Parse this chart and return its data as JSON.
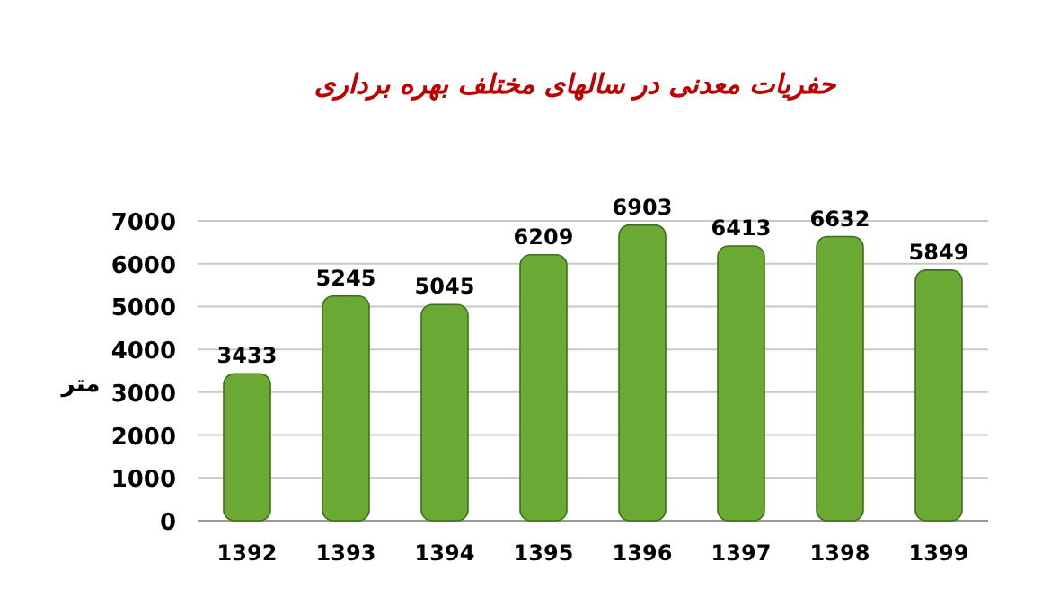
{
  "chart_data": {
    "type": "bar",
    "title": "حفریات معدنی در سالهای مختلف بهره برداری",
    "ylabel": "متر",
    "categories": [
      "1392",
      "1393",
      "1394",
      "1395",
      "1396",
      "1397",
      "1398",
      "1399"
    ],
    "values": [
      3433,
      5245,
      5045,
      6209,
      6903,
      6413,
      6632,
      5849
    ],
    "color": "#6aaa34",
    "data_labels": true,
    "grid": "y",
    "ylim": [
      0,
      7000
    ],
    "yticks": [
      0,
      1000,
      2000,
      3000,
      4000,
      5000,
      6000,
      7000
    ]
  }
}
